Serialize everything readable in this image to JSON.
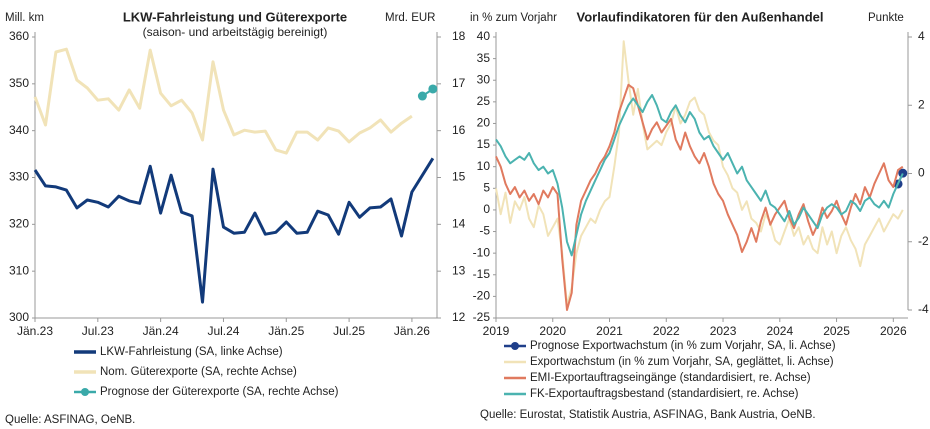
{
  "chart_data": [
    {
      "type": "line",
      "title": "LKW-Fahrleistung und Güterexporte",
      "subtitle": "(saison- und arbeitstägig bereinigt)",
      "y_label": "Mill. km",
      "y2_label": "Mrd. EUR",
      "source": "Quelle: ASFINAG, OeNB.",
      "categories": [
        "Jän.23",
        null,
        null,
        null,
        null,
        null,
        "Jul.23",
        null,
        null,
        null,
        null,
        null,
        "Jän.24",
        null,
        null,
        null,
        null,
        null,
        "Jul.24",
        null,
        null,
        null,
        null,
        null,
        "Jän.25",
        null,
        null,
        null,
        null,
        null,
        "Jul.25",
        null,
        null,
        null,
        null,
        null,
        "Jän.26",
        null,
        null
      ],
      "ylim": [
        300,
        360
      ],
      "yticks": [
        300,
        310,
        320,
        330,
        340,
        350,
        360
      ],
      "y2lim": [
        12,
        18
      ],
      "y2ticks": [
        12,
        13,
        14,
        15,
        16,
        17,
        18
      ],
      "series": [
        {
          "name": "LKW-Fahrleistung (SA, linke Achse)",
          "color": "#123a7a",
          "line_width": 3,
          "values": [
            331.6,
            328.2,
            328.0,
            327.3,
            323.5,
            325.2,
            324.7,
            323.7,
            326.0,
            325.0,
            324.5,
            332.4,
            322.4,
            330.5,
            322.6,
            321.8,
            303.4,
            331.8,
            319.4,
            318.1,
            318.3,
            322.4,
            317.9,
            318.3,
            320.5,
            318.1,
            318.3,
            322.8,
            322.0,
            317.9,
            324.7,
            321.5,
            323.5,
            323.7,
            325.4,
            317.5,
            326.9,
            330.5,
            334.1
          ]
        },
        {
          "name": "Nom. Güterexporte (SA, rechte Achse)",
          "color": "#f1e3b8",
          "line_width": 3,
          "axis": "y2",
          "values": [
            16.72,
            16.12,
            17.68,
            17.74,
            17.08,
            16.91,
            16.65,
            16.68,
            16.44,
            16.87,
            16.48,
            17.72,
            16.8,
            16.53,
            16.65,
            16.38,
            15.8,
            17.47,
            16.44,
            15.91,
            16.01,
            15.97,
            15.99,
            15.59,
            15.52,
            15.97,
            15.97,
            15.8,
            16.06,
            15.99,
            15.76,
            15.95,
            16.06,
            16.23,
            15.97,
            16.16,
            16.31,
            null,
            null
          ]
        },
        {
          "name": "Prognose der Güterexporte (SA, rechte Achse)",
          "color": "#3aa9a9",
          "line_width": 2,
          "axis": "y2",
          "marker": true,
          "values": [
            null,
            null,
            null,
            null,
            null,
            null,
            null,
            null,
            null,
            null,
            null,
            null,
            null,
            null,
            null,
            null,
            null,
            null,
            null,
            null,
            null,
            null,
            null,
            null,
            null,
            null,
            null,
            null,
            null,
            null,
            null,
            null,
            null,
            null,
            null,
            null,
            null,
            16.74,
            16.89
          ]
        }
      ]
    },
    {
      "type": "line",
      "title": "Vorlaufindikatoren für den Außenhandel",
      "y_label": "in % zum Vorjahr",
      "y2_label": "Punkte",
      "source": "Quelle: Eurostat, Statistik Austria, ASFINAG, Bank Austria, OeNB.",
      "categories": [
        "2019",
        null,
        null,
        null,
        null,
        null,
        null,
        null,
        null,
        null,
        null,
        null,
        "2020",
        null,
        null,
        null,
        null,
        null,
        null,
        null,
        null,
        null,
        null,
        null,
        "2021",
        null,
        null,
        null,
        null,
        null,
        null,
        null,
        null,
        null,
        null,
        null,
        "2022",
        null,
        null,
        null,
        null,
        null,
        null,
        null,
        null,
        null,
        null,
        null,
        "2023",
        null,
        null,
        null,
        null,
        null,
        null,
        null,
        null,
        null,
        null,
        null,
        "2024",
        null,
        null,
        null,
        null,
        null,
        null,
        null,
        null,
        null,
        null,
        null,
        "2025",
        null,
        null,
        null,
        null,
        null,
        null,
        null,
        null,
        null,
        null,
        null,
        "2026",
        null,
        null
      ],
      "ylim": [
        -25,
        40
      ],
      "yticks": [
        -25,
        -20,
        -15,
        -10,
        -5,
        0,
        5,
        10,
        15,
        20,
        25,
        30,
        35,
        40
      ],
      "y2lim": [
        -4,
        4
      ],
      "y2ticks": [
        -4,
        -2,
        0,
        2,
        4
      ],
      "series": [
        {
          "name": "Prognose Exportwachstum (in % zum Vorjahr, SA, li. Achse)",
          "color": "#1f3f8a",
          "line_width": 2,
          "marker": true,
          "values": [
            null,
            null,
            null,
            null,
            null,
            null,
            null,
            null,
            null,
            null,
            null,
            null,
            null,
            null,
            null,
            null,
            null,
            null,
            null,
            null,
            null,
            null,
            null,
            null,
            null,
            null,
            null,
            null,
            null,
            null,
            null,
            null,
            null,
            null,
            null,
            null,
            null,
            null,
            null,
            null,
            null,
            null,
            null,
            null,
            null,
            null,
            null,
            null,
            null,
            null,
            null,
            null,
            null,
            null,
            null,
            null,
            null,
            null,
            null,
            null,
            null,
            null,
            null,
            null,
            null,
            null,
            null,
            null,
            null,
            null,
            null,
            null,
            null,
            null,
            null,
            null,
            null,
            null,
            null,
            null,
            null,
            null,
            null,
            null,
            null,
            6,
            8.5
          ]
        },
        {
          "name": "Exportwachstum (in % zum Vorjahr, SA, geglättet, li. Achse)",
          "color": "#f1e3b8",
          "line_width": 2,
          "values": [
            5,
            -1,
            4,
            -3,
            2,
            0,
            3,
            -2,
            -4,
            1,
            -1,
            -6,
            -4,
            -2,
            -10,
            -22,
            -18,
            -10,
            -6,
            -4,
            -2,
            -3,
            0,
            2,
            3,
            10,
            18,
            39,
            30,
            22,
            28,
            20,
            14,
            15,
            16,
            15,
            18,
            20,
            24,
            20,
            22,
            25,
            26,
            23,
            22,
            18,
            16,
            15,
            10,
            8,
            5,
            4,
            0,
            2,
            -2,
            -3,
            -5,
            -1,
            -3,
            -7,
            -8,
            -5,
            -2,
            -6,
            -4,
            -8,
            -6,
            -9,
            -10,
            -4,
            -8,
            -5,
            -10,
            -6,
            -4,
            -7,
            -9,
            -13,
            -8,
            -6,
            -4,
            -2,
            -5,
            -3,
            -1,
            -2,
            0
          ]
        },
        {
          "name": "EMI-Exportauftragseingänge (standardisiert, re. Achse)",
          "color": "#e07a5f",
          "line_width": 2,
          "axis": "y2",
          "values": [
            0.5,
            0.2,
            -0.3,
            -0.6,
            -0.4,
            -0.7,
            -0.5,
            -0.8,
            -0.6,
            -0.9,
            -0.5,
            -0.7,
            -0.4,
            -0.6,
            -2.5,
            -4,
            -3.5,
            -1.5,
            -0.8,
            -0.5,
            -0.2,
            0,
            0.3,
            0.5,
            0.8,
            1.2,
            1.8,
            2.2,
            2.6,
            2.5,
            2.0,
            1.5,
            1.0,
            1.3,
            1.5,
            1.2,
            1.4,
            1.6,
            1.0,
            0.7,
            1.2,
            0.8,
            0.5,
            0.3,
            0.6,
            0.2,
            -0.3,
            -0.6,
            -0.8,
            -1.2,
            -1.5,
            -1.8,
            -2.3,
            -2.0,
            -1.6,
            -2.0,
            -1.4,
            -1.0,
            -1.5,
            -1.2,
            -1.0,
            -0.8,
            -1.3,
            -1.6,
            -1.2,
            -0.9,
            -1.4,
            -1.8,
            -1.5,
            -1.0,
            -1.3,
            -1.1,
            -0.8,
            -1.2,
            -1.5,
            -1.0,
            -0.6,
            -0.9,
            -0.4,
            -0.7,
            -0.3,
            0.0,
            0.3,
            -0.2,
            -0.4,
            0.1,
            0.2
          ]
        },
        {
          "name": "FK-Exportauftragsbestand (standardisiert, re. Achse)",
          "color": "#4bb3b0",
          "line_width": 2,
          "axis": "y2",
          "values": [
            1.0,
            0.8,
            0.5,
            0.3,
            0.4,
            0.5,
            0.4,
            0.6,
            0.3,
            0.1,
            0.2,
            0.0,
            0.1,
            -0.3,
            -1.0,
            -2.0,
            -2.4,
            -1.8,
            -1.2,
            -0.8,
            -0.5,
            -0.2,
            0.1,
            0.4,
            0.6,
            1.0,
            1.4,
            1.7,
            2.0,
            2.2,
            2.0,
            1.8,
            2.1,
            2.3,
            2.0,
            1.6,
            1.5,
            1.8,
            2.0,
            1.7,
            1.5,
            1.8,
            1.6,
            1.2,
            1.0,
            1.1,
            0.8,
            0.6,
            0.4,
            0.6,
            0.3,
            0.0,
            0.2,
            -0.2,
            -0.4,
            -0.6,
            -0.8,
            -0.5,
            -0.9,
            -1.0,
            -1.2,
            -1.4,
            -1.1,
            -1.5,
            -1.3,
            -1.0,
            -1.2,
            -1.4,
            -1.6,
            -1.2,
            -1.0,
            -0.9,
            -1.0,
            -1.2,
            -1.1,
            -0.8,
            -0.9,
            -1.1,
            -0.8,
            -0.7,
            -0.9,
            -1.0,
            -0.8,
            -1.0,
            -0.6,
            -0.3,
            0.0
          ]
        }
      ]
    }
  ]
}
